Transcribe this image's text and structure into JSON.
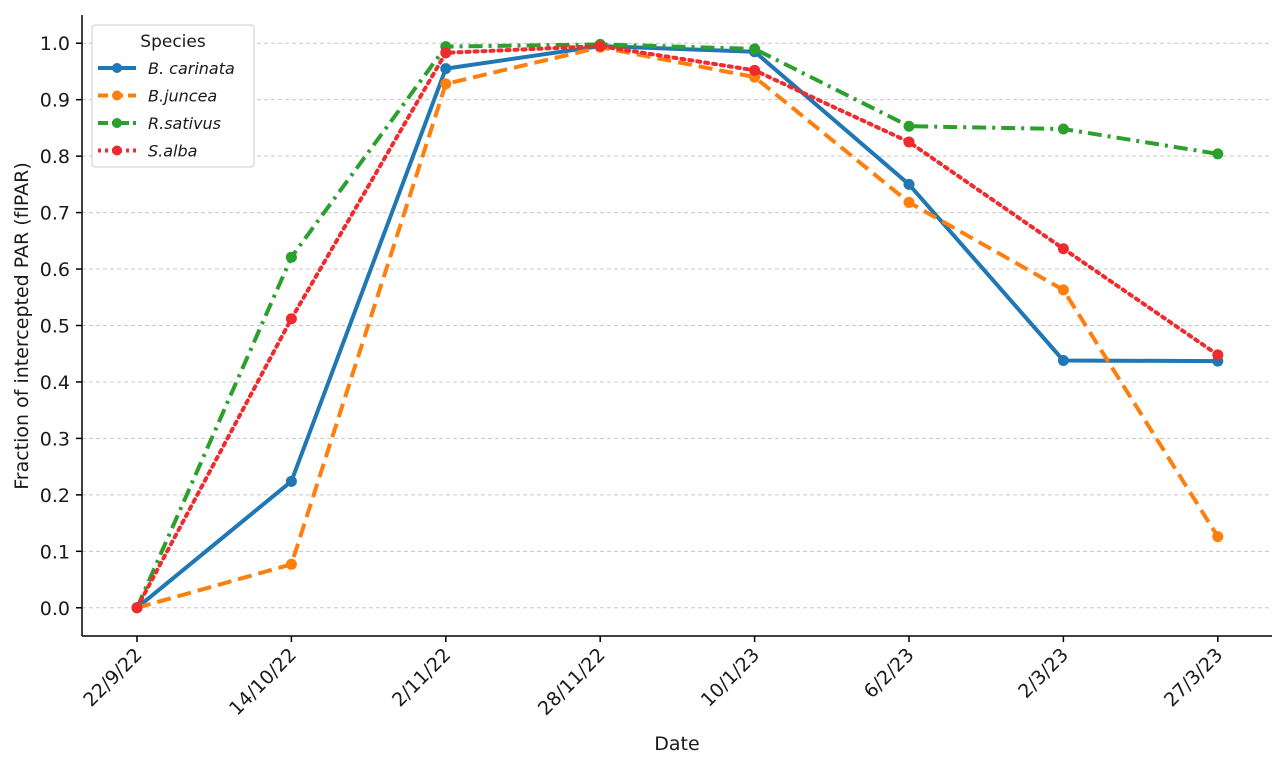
{
  "chart_data": {
    "type": "line",
    "title": "",
    "xlabel": "Date",
    "ylabel": "Fraction of intercepted PAR (fIPAR)",
    "categories": [
      "22/9/22",
      "14/10/22",
      "2/11/22",
      "28/11/22",
      "10/1/23",
      "6/2/23",
      "2/3/23",
      "27/3/23"
    ],
    "ylim": [
      -0.05,
      1.05
    ],
    "yticks": [
      0.0,
      0.1,
      0.2,
      0.3,
      0.4,
      0.5,
      0.6,
      0.7,
      0.8,
      0.9,
      1.0
    ],
    "ytick_labels": [
      "0.0",
      "0.1",
      "0.2",
      "0.3",
      "0.4",
      "0.5",
      "0.6",
      "0.7",
      "0.8",
      "0.9",
      "1.0"
    ],
    "grid": "horizontal dashed",
    "legend": {
      "title": "Species",
      "placement": "top-left"
    },
    "series": [
      {
        "name": "B. carinata",
        "color": "#1f77b4",
        "dash": "solid",
        "values": [
          0.0,
          0.224,
          0.955,
          0.995,
          0.985,
          0.75,
          0.438,
          0.437
        ]
      },
      {
        "name": "B.juncea",
        "color": "#ff7f0e",
        "dash": "dashed",
        "values": [
          0.0,
          0.077,
          0.928,
          0.993,
          0.94,
          0.718,
          0.563,
          0.126
        ]
      },
      {
        "name": "R.sativus",
        "color": "#2ca02c",
        "dash": "dashdot",
        "values": [
          0.0,
          0.621,
          0.994,
          0.998,
          0.99,
          0.853,
          0.848,
          0.804
        ]
      },
      {
        "name": "S.alba",
        "color": "#ef2b2d",
        "dash": "dotted",
        "values": [
          0.0,
          0.512,
          0.983,
          0.995,
          0.952,
          0.825,
          0.636,
          0.448
        ]
      }
    ]
  }
}
